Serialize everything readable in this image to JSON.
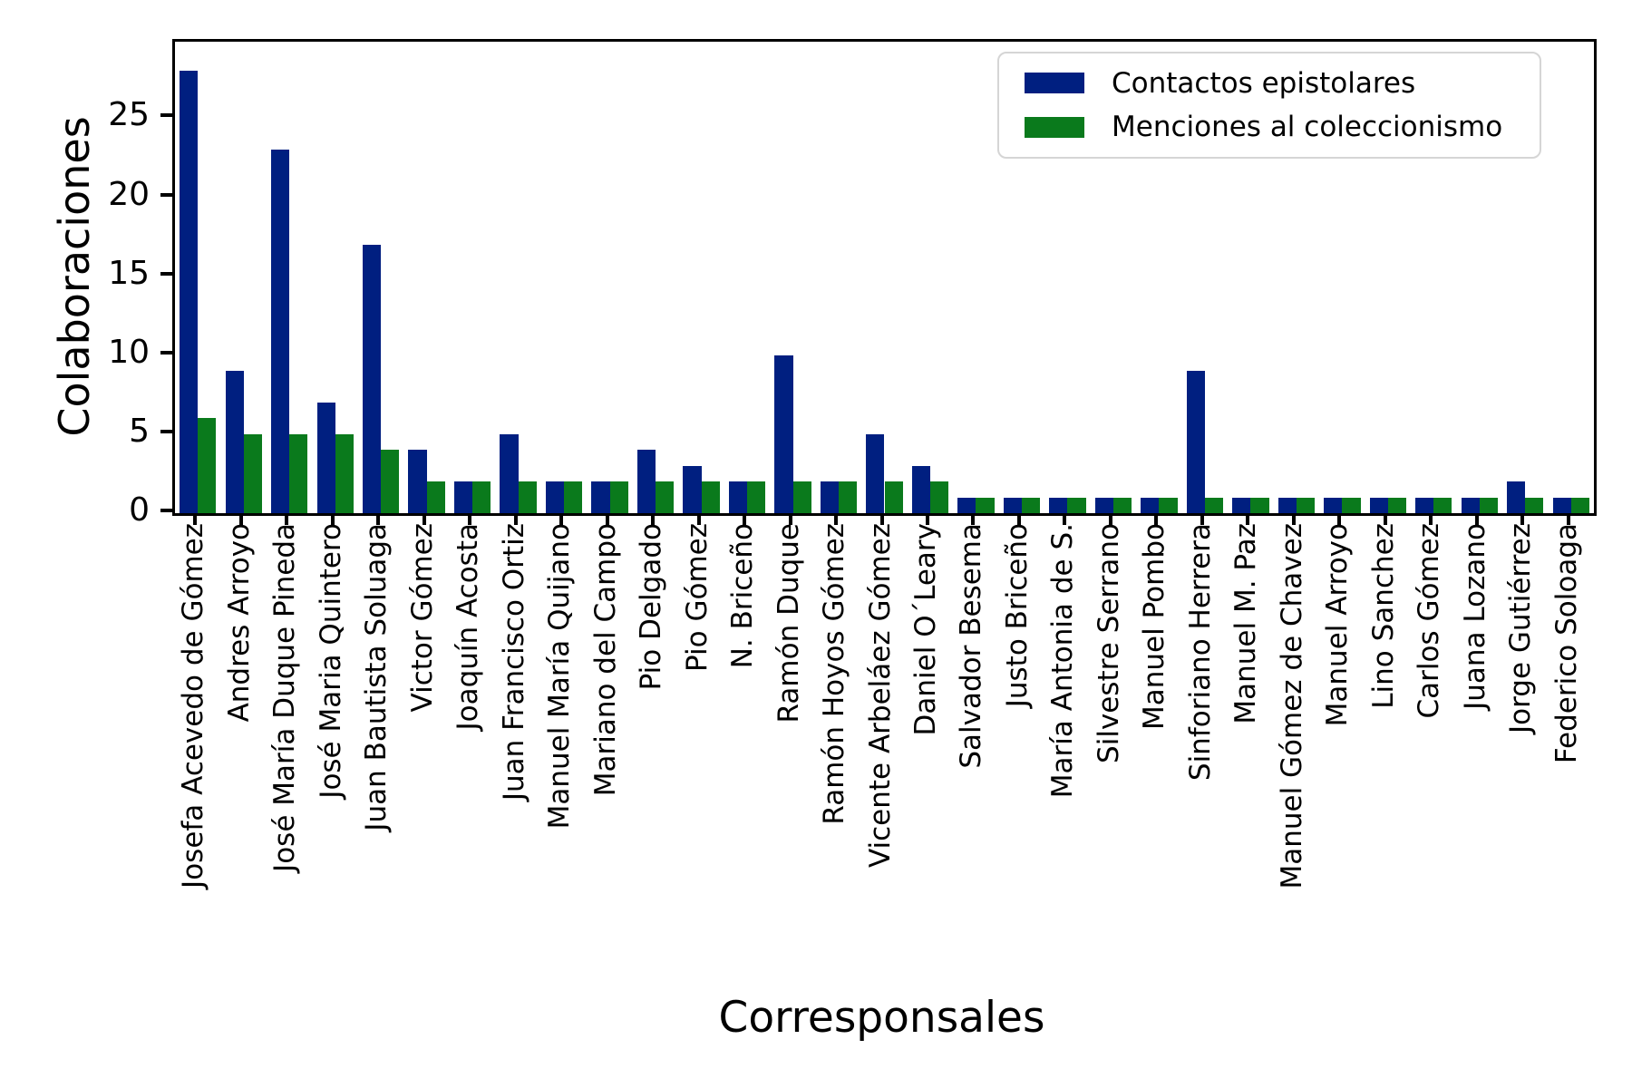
{
  "chart_data": {
    "type": "bar",
    "title": "",
    "xlabel": "Corresponsales",
    "ylabel": "Colaboraciones",
    "categories": [
      "Josefa Acevedo de Gómez",
      "Andres Arroyo",
      "José María Duque Pineda",
      "José Maria Quintero",
      "Juan Bautista Soluaga",
      "Victor Gómez",
      "Joaquín Acosta",
      "Juan Francisco Ortiz",
      "Manuel María Quijano",
      "Mariano del Campo",
      "Pio Delgado",
      "Pio Gómez",
      "N. Briceño",
      "Ramón Duque",
      "Ramón Hoyos Gómez",
      "Vicente Arbeláez Gómez",
      "Daniel O´Leary",
      "Salvador Besema",
      "Justo Briceño",
      "María Antonia de S.",
      "Silvestre Serrano",
      "Manuel Pombo",
      "Sinforiano Herrera",
      "Manuel M. Paz",
      "Manuel Gómez de Chavez",
      "Manuel Arroyo",
      "Lino Sanchez",
      "Carlos Gómez",
      "Juana Lozano",
      "Jorge Gutiérrez",
      "Federico Soloaga"
    ],
    "series": [
      {
        "name": "Contactos epistolares",
        "color": "#001f80",
        "values": [
          28,
          9,
          23,
          7,
          17,
          4,
          2,
          5,
          2,
          2,
          4,
          3,
          2,
          10,
          2,
          5,
          3,
          1,
          1,
          1,
          1,
          1,
          9,
          1,
          1,
          1,
          1,
          1,
          1,
          2,
          1
        ]
      },
      {
        "name": "Menciones al coleccionismo",
        "color": "#0a7a1c",
        "values": [
          6,
          5,
          5,
          5,
          4,
          2,
          2,
          2,
          2,
          2,
          2,
          2,
          2,
          2,
          2,
          2,
          2,
          1,
          1,
          1,
          1,
          1,
          1,
          1,
          1,
          1,
          1,
          1,
          1,
          1,
          1
        ]
      }
    ],
    "yticks": [
      0,
      5,
      10,
      15,
      20,
      25
    ],
    "ylim": [
      0,
      29.85
    ],
    "grid": false,
    "legend_position": "upper right",
    "bar_group_fraction": 0.8
  }
}
